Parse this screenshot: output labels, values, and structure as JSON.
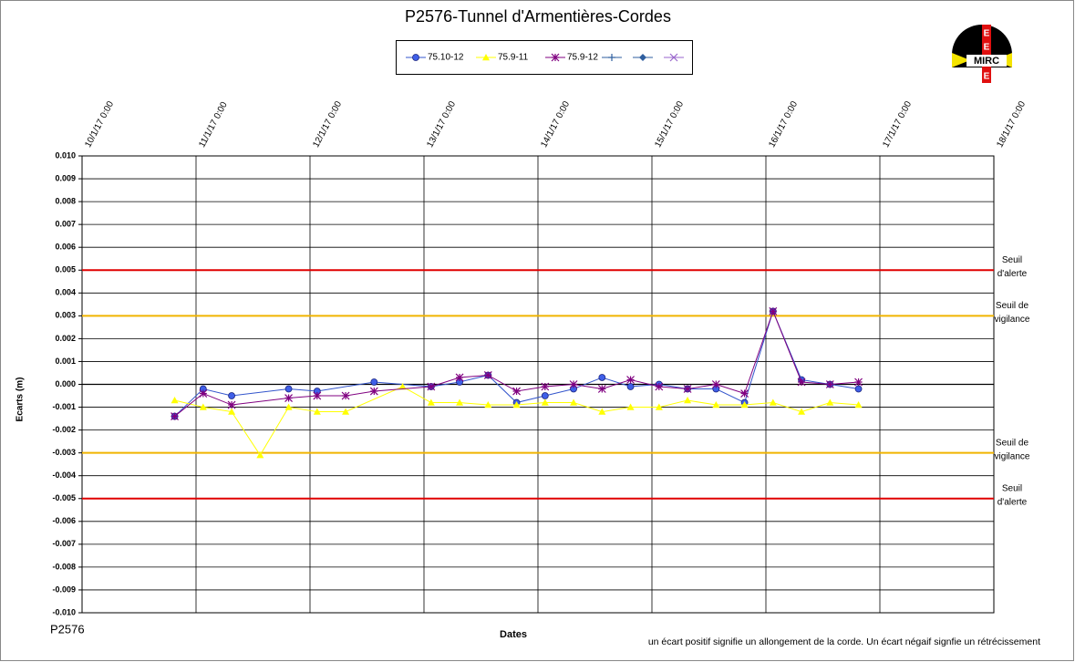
{
  "chart_data": {
    "type": "line",
    "title": "P2576-Tunnel  d'Armentières-Cordes",
    "y_label": "Ecarts (m)",
    "x_label": "Dates",
    "corner_label": "P2576",
    "footnote": "un écart positif signifie un allongement de la corde.  Un écart négaif signfie  un rétrécissement",
    "logo_text": "MIRC",
    "logo_letters": [
      "E",
      "E",
      "E"
    ],
    "grid": true,
    "xlim": [
      "2017-01-10T00:00",
      "2017-01-18T00:00"
    ],
    "xticks": [
      {
        "value": "2017-01-10T00:00",
        "label": "10/1/17 0:00"
      },
      {
        "value": "2017-01-11T00:00",
        "label": "11/1/17 0:00"
      },
      {
        "value": "2017-01-12T00:00",
        "label": "12/1/17 0:00"
      },
      {
        "value": "2017-01-13T00:00",
        "label": "13/1/17 0:00"
      },
      {
        "value": "2017-01-14T00:00",
        "label": "14/1/17 0:00"
      },
      {
        "value": "2017-01-15T00:00",
        "label": "15/1/17 0:00"
      },
      {
        "value": "2017-01-16T00:00",
        "label": "16/1/17 0:00"
      },
      {
        "value": "2017-01-17T00:00",
        "label": "17/1/17 0:00"
      },
      {
        "value": "2017-01-18T00:00",
        "label": "18/1/17 0:00"
      }
    ],
    "ylim": [
      -0.01,
      0.01
    ],
    "yticks": [
      {
        "value": -0.01,
        "label": "-0.010"
      },
      {
        "value": -0.009,
        "label": "-0.009"
      },
      {
        "value": -0.008,
        "label": "-0.008"
      },
      {
        "value": -0.007,
        "label": "-0.007"
      },
      {
        "value": -0.006,
        "label": "-0.006"
      },
      {
        "value": -0.005,
        "label": "-0.005"
      },
      {
        "value": -0.004,
        "label": "-0.004"
      },
      {
        "value": -0.003,
        "label": "-0.003"
      },
      {
        "value": -0.002,
        "label": "-0.002"
      },
      {
        "value": -0.001,
        "label": "-0.001"
      },
      {
        "value": 0,
        "label": "0.000"
      },
      {
        "value": 0.001,
        "label": "0.001"
      },
      {
        "value": 0.002,
        "label": "0.002"
      },
      {
        "value": 0.003,
        "label": "0.003"
      },
      {
        "value": 0.004,
        "label": "0.004"
      },
      {
        "value": 0.005,
        "label": "0.005"
      },
      {
        "value": 0.006,
        "label": "0.006"
      },
      {
        "value": 0.007,
        "label": "0.007"
      },
      {
        "value": 0.008,
        "label": "0.008"
      },
      {
        "value": 0.009,
        "label": "0.009"
      },
      {
        "value": 0.01,
        "label": "0.010"
      }
    ],
    "thresholds": [
      {
        "value": 0.005,
        "color": "#e00000",
        "label": [
          "Seuil",
          "d'alerte"
        ]
      },
      {
        "value": 0.003,
        "color": "#f0b400",
        "label": [
          "Seuil de",
          "vigilance"
        ]
      },
      {
        "value": -0.003,
        "color": "#f0b400",
        "label": [
          "Seuil de",
          "vigilance"
        ]
      },
      {
        "value": -0.005,
        "color": "#e00000",
        "label": [
          "Seuil",
          "d'alerte"
        ]
      }
    ],
    "series": [
      {
        "name": "75.10-12",
        "color": "#3355cc",
        "marker": "circle",
        "x": [
          "2017-01-10T19:30",
          "2017-01-11T01:30",
          "2017-01-11T07:30",
          "2017-01-11T19:30",
          "2017-01-12T01:30",
          "2017-01-12T13:30",
          "2017-01-13T01:30",
          "2017-01-13T07:30",
          "2017-01-13T13:30",
          "2017-01-13T19:30",
          "2017-01-14T01:30",
          "2017-01-14T07:30",
          "2017-01-14T13:30",
          "2017-01-14T19:30",
          "2017-01-15T01:30",
          "2017-01-15T07:30",
          "2017-01-15T13:30",
          "2017-01-15T19:30",
          "2017-01-16T01:30",
          "2017-01-16T07:30",
          "2017-01-16T13:30",
          "2017-01-16T19:30"
        ],
        "values": [
          -0.0014,
          -0.0002,
          -0.0005,
          -0.0002,
          -0.0003,
          0.0001,
          -0.0001,
          0.0001,
          0.0004,
          -0.0008,
          -0.0005,
          -0.0002,
          0.0003,
          -0.0001,
          0.0,
          -0.0002,
          -0.0002,
          -0.0008,
          0.0032,
          0.0002,
          0.0,
          -0.0002
        ]
      },
      {
        "name": "75.9-11",
        "color": "#ffff00",
        "marker": "triangle",
        "x": [
          "2017-01-10T19:30",
          "2017-01-11T01:30",
          "2017-01-11T07:30",
          "2017-01-11T13:30",
          "2017-01-11T19:30",
          "2017-01-12T01:30",
          "2017-01-12T07:30",
          "2017-01-12T19:30",
          "2017-01-13T01:30",
          "2017-01-13T07:30",
          "2017-01-13T13:30",
          "2017-01-13T19:30",
          "2017-01-14T01:30",
          "2017-01-14T07:30",
          "2017-01-14T13:30",
          "2017-01-14T19:30",
          "2017-01-15T01:30",
          "2017-01-15T07:30",
          "2017-01-15T13:30",
          "2017-01-15T19:30",
          "2017-01-16T01:30",
          "2017-01-16T07:30",
          "2017-01-16T13:30",
          "2017-01-16T19:30"
        ],
        "values": [
          -0.0007,
          -0.001,
          -0.0012,
          -0.0031,
          -0.001,
          -0.0012,
          -0.0012,
          -0.0001,
          -0.0008,
          -0.0008,
          -0.0009,
          -0.0009,
          -0.0008,
          -0.0008,
          -0.0012,
          -0.001,
          -0.001,
          -0.0007,
          -0.0009,
          -0.0009,
          -0.0008,
          -0.0012,
          -0.0008,
          -0.0009
        ]
      },
      {
        "name": "75.9-12",
        "color": "#800080",
        "marker": "star",
        "x": [
          "2017-01-10T19:30",
          "2017-01-11T01:30",
          "2017-01-11T07:30",
          "2017-01-11T19:30",
          "2017-01-12T01:30",
          "2017-01-12T07:30",
          "2017-01-12T13:30",
          "2017-01-13T01:30",
          "2017-01-13T07:30",
          "2017-01-13T13:30",
          "2017-01-13T19:30",
          "2017-01-14T01:30",
          "2017-01-14T07:30",
          "2017-01-14T13:30",
          "2017-01-14T19:30",
          "2017-01-15T01:30",
          "2017-01-15T07:30",
          "2017-01-15T13:30",
          "2017-01-15T19:30",
          "2017-01-16T01:30",
          "2017-01-16T07:30",
          "2017-01-16T13:30",
          "2017-01-16T19:30"
        ],
        "values": [
          -0.0014,
          -0.0004,
          -0.0009,
          -0.0006,
          -0.0005,
          -0.0005,
          -0.0003,
          -0.0001,
          0.0003,
          0.0004,
          -0.0003,
          -0.0001,
          0.0,
          -0.0002,
          0.0002,
          -0.0001,
          -0.0002,
          0.0,
          -0.0004,
          0.0032,
          0.0001,
          0.0,
          0.0001
        ]
      },
      {
        "color": "#2f5f9f",
        "marker": "plus",
        "x": [],
        "values": []
      },
      {
        "color": "#2f5f9f",
        "marker": "diamond",
        "x": [],
        "values": []
      },
      {
        "color": "#9966cc",
        "marker": "cross",
        "x": [],
        "values": []
      }
    ]
  }
}
